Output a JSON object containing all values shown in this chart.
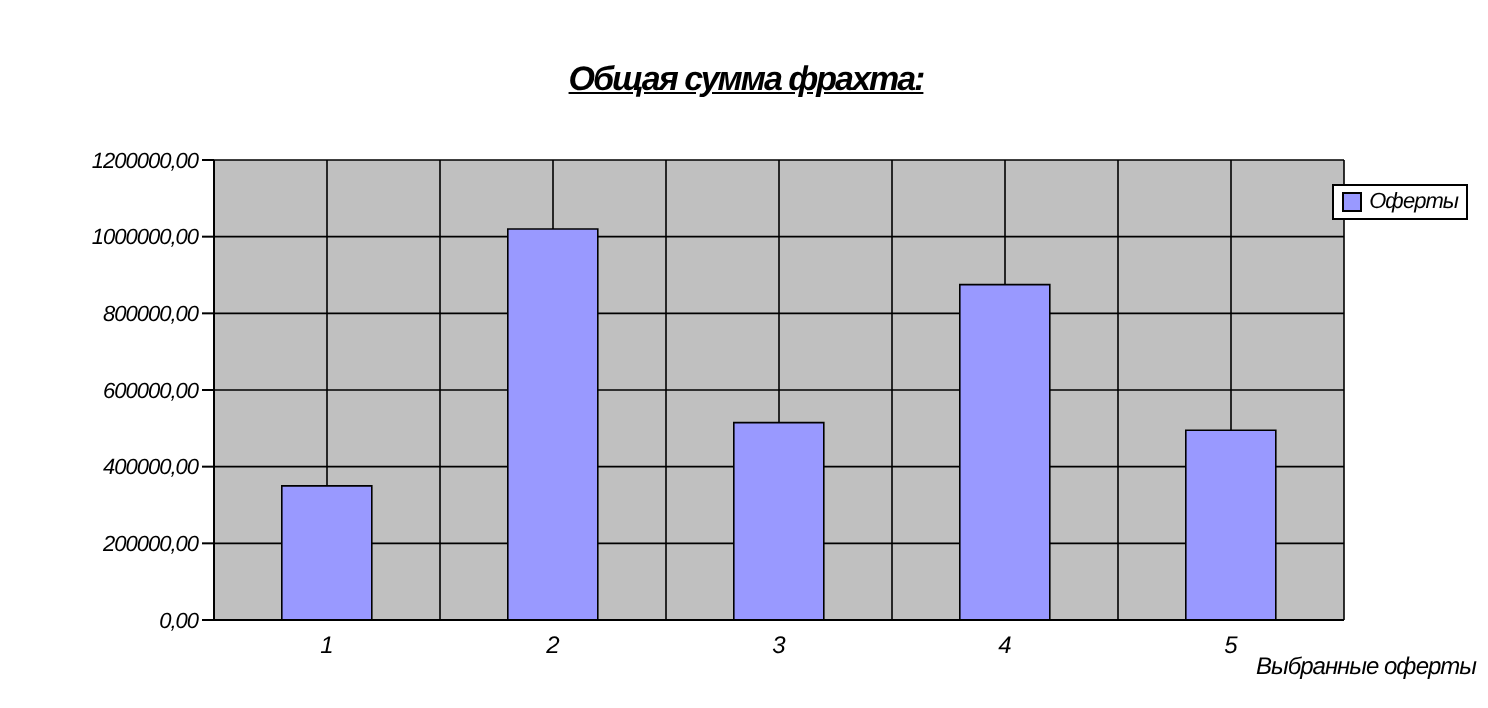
{
  "chart_data": {
    "type": "bar",
    "title": "Общая сумма фрахта:",
    "xlabel": "Выбранные оферты",
    "categories": [
      "1",
      "2",
      "3",
      "4",
      "5"
    ],
    "series": [
      {
        "name": "Оферты",
        "color": "#9999ff",
        "values": [
          350000,
          1020000,
          515000,
          875000,
          495000
        ]
      }
    ],
    "ylim": [
      0,
      1200000
    ],
    "yticks": [
      {
        "value": 0,
        "label": "0,00"
      },
      {
        "value": 200000,
        "label": "200000,00"
      },
      {
        "value": 400000,
        "label": "400000,00"
      },
      {
        "value": 600000,
        "label": "600000,00"
      },
      {
        "value": 800000,
        "label": "800000,00"
      },
      {
        "value": 1000000,
        "label": "1000000,00"
      },
      {
        "value": 1200000,
        "label": "1200000,00"
      }
    ],
    "grid": true,
    "legend": "top right"
  }
}
